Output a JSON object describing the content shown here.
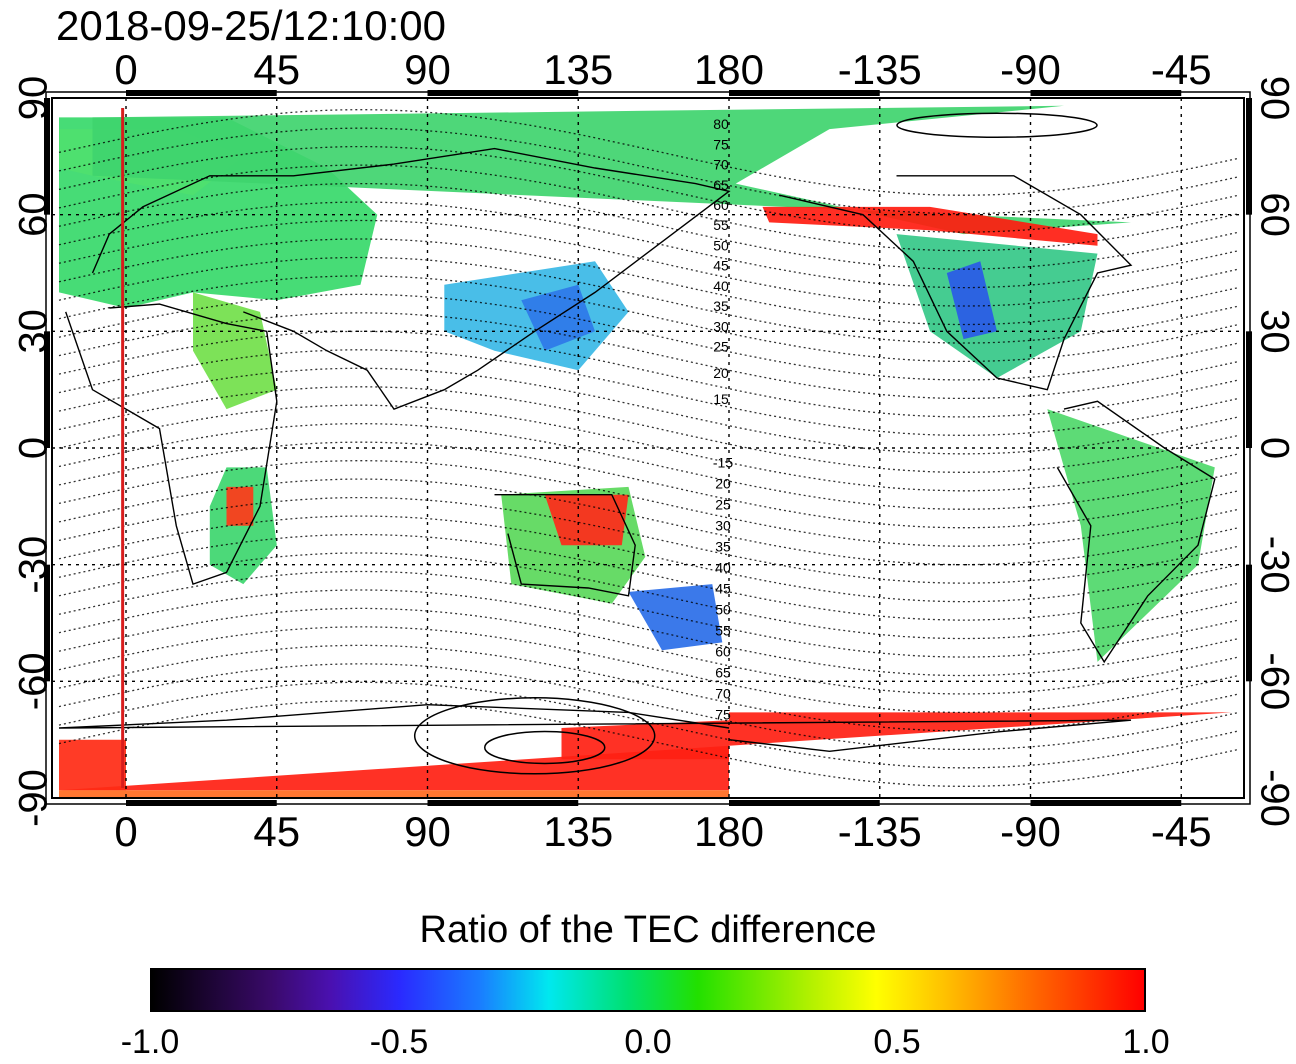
{
  "title": "2018-09-25/12:10:00",
  "map": {
    "top_lon_labels": [
      "0",
      "45",
      "90",
      "135",
      "180",
      "-135",
      "-90",
      "-45"
    ],
    "bottom_lon_labels": [
      "0",
      "45",
      "90",
      "135",
      "180",
      "-135",
      "-90",
      "-45"
    ],
    "left_lat_labels": [
      "90",
      "60",
      "30",
      "0",
      "-30",
      "-60",
      "-90"
    ],
    "right_lat_labels": [
      "90",
      "60",
      "30",
      "0",
      "-30",
      "-60",
      "-90"
    ],
    "lon_values": [
      0,
      45,
      90,
      135,
      180,
      -135,
      -90,
      -45
    ],
    "lat_values": [
      90,
      60,
      30,
      0,
      -30,
      -60,
      -90
    ],
    "magnetic_contour_labels_north": [
      "80",
      "75",
      "70",
      "65",
      "60",
      "55",
      "50",
      "45",
      "40",
      "35",
      "30",
      "25",
      "20",
      "15"
    ],
    "magnetic_contour_labels_south": [
      "15",
      "20",
      "25",
      "30",
      "35",
      "40",
      "45",
      "50",
      "55",
      "60",
      "65",
      "70",
      "75"
    ],
    "grid": true,
    "marker_meridian_color": "#d81c1c"
  },
  "colorbar": {
    "title": "Ratio of the TEC difference",
    "tick_labels": [
      "-1.0",
      "-0.5",
      "0.0",
      "0.5",
      "1.0"
    ],
    "tick_values": [
      -1.0,
      -0.5,
      0.0,
      0.5,
      1.0
    ],
    "range": [
      -1.0,
      1.0
    ],
    "colors": [
      "#000000",
      "#4a10b0",
      "#2a2aff",
      "#00e8ef",
      "#00e070",
      "#aef000",
      "#ffff00",
      "#ff7000",
      "#ff0000"
    ]
  }
}
